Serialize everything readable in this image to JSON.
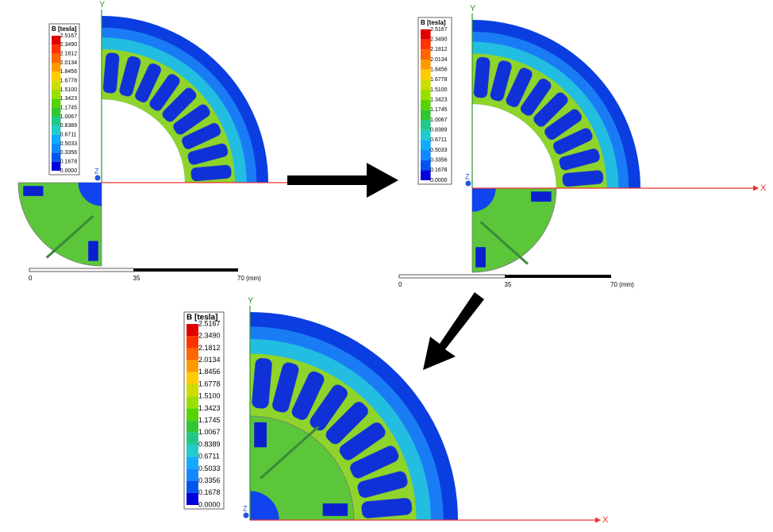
{
  "legend": {
    "title": "B [tesla]",
    "levels": [
      "2.5167",
      "2.3490",
      "2.1812",
      "2.0134",
      "1.8456",
      "1.6778",
      "1.5100",
      "1.3423",
      "1.1745",
      "1.0067",
      "0.8389",
      "0.6711",
      "0.5033",
      "0.3356",
      "0.1678",
      "0.0000"
    ]
  },
  "axes": {
    "x": "X",
    "y": "Y",
    "z": "Z"
  },
  "scale_bar": {
    "labels": [
      "0",
      "35",
      "70 (mm)"
    ]
  }
}
